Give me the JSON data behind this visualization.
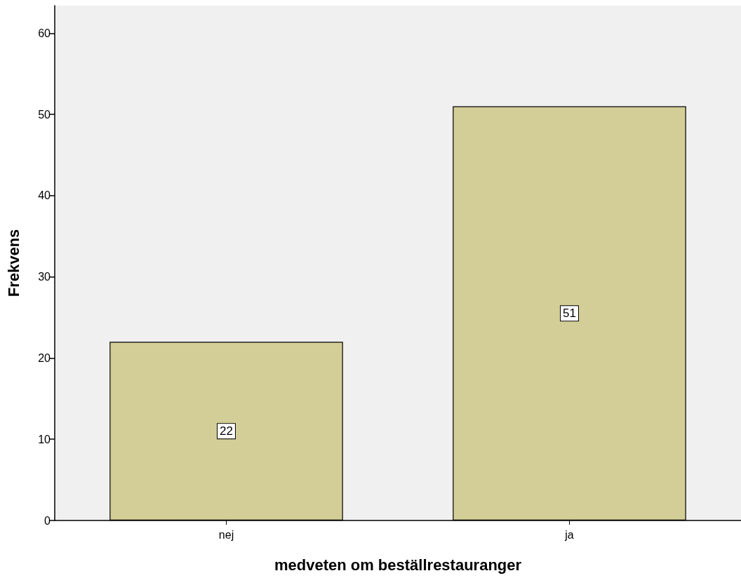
{
  "chart_data": {
    "type": "bar",
    "xlabel": "medveten om beställrestauranger",
    "ylabel": "Frekvens",
    "categories": [
      "nej",
      "ja"
    ],
    "values": [
      22,
      51
    ],
    "color": "#d3ce97",
    "ylim": [
      0,
      63.4
    ],
    "yticks": [
      0,
      10,
      20,
      30,
      40,
      50,
      60
    ],
    "grid": false,
    "data_labels": true
  }
}
